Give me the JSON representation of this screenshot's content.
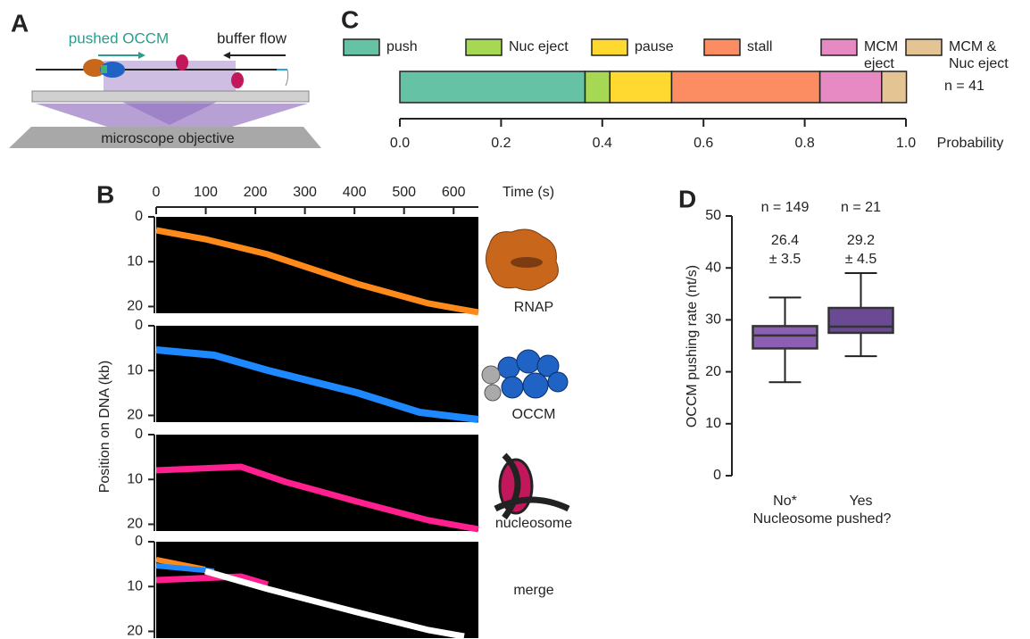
{
  "panels": {
    "a": {
      "letter": "A",
      "pushed_label": "pushed OCCM",
      "flow_label": "buffer flow",
      "objective_label": "microscope objective"
    },
    "b": {
      "letter": "B"
    },
    "c": {
      "letter": "C"
    },
    "d": {
      "letter": "D"
    }
  },
  "chart_data": [
    {
      "type": "kymograph",
      "xlabel": "Time (s)",
      "ylabel": "Position on DNA (kb)",
      "xlim": [
        0,
        650
      ],
      "xticks": [
        0,
        100,
        200,
        300,
        400,
        500,
        600
      ],
      "ylim": [
        0,
        21.5
      ],
      "yticks": [
        0,
        10,
        20
      ],
      "channels": [
        {
          "name": "RNAP",
          "color": "#ff8a1c"
        },
        {
          "name": "OCCM",
          "color": "#1e88ff"
        },
        {
          "name": "nucleosome",
          "color": "#ff1f8f"
        },
        {
          "name": "merge",
          "color": "#ffffff"
        }
      ]
    },
    {
      "type": "bar",
      "orientation": "horizontal",
      "stacked": true,
      "xlabel": "Probability",
      "annotation": "n = 41",
      "xlim": [
        0,
        1
      ],
      "xticks": [
        {
          "value": 0,
          "label": "0.0"
        },
        0.2,
        0.4,
        0.6,
        0.8,
        {
          "value": 1,
          "label": "1.0"
        }
      ],
      "series": [
        {
          "name": "push",
          "color": "#66c2a5",
          "values": [
            0.366
          ]
        },
        {
          "name": "Nuc eject",
          "color": "#a6d854",
          "values": [
            0.049
          ]
        },
        {
          "name": "pause",
          "color": "#ffd92f",
          "values": [
            0.122
          ]
        },
        {
          "name": "stall",
          "color": "#fc8d62",
          "values": [
            0.293
          ]
        },
        {
          "name": "MCM eject",
          "color": "#e78ac3",
          "values": [
            0.122
          ]
        },
        {
          "name": "MCM & Nuc eject",
          "color": "#e5c494",
          "values": [
            0.049
          ]
        }
      ]
    },
    {
      "type": "box",
      "xlabel": "Nucleosome pushed?",
      "ylabel": "OCCM pushing rate (nt/s)",
      "categories": [
        "No*",
        "Yes"
      ],
      "colors": [
        "#8b5fb3",
        "#6a4a92"
      ],
      "boxes": [
        {
          "whislo": 18,
          "q1": 24.5,
          "med": 27,
          "q3": 28.8,
          "whishi": 34.3
        },
        {
          "whislo": 23,
          "q1": 27.5,
          "med": 28.7,
          "q3": 32.3,
          "whishi": 39
        }
      ],
      "n_labels": [
        "n = 149",
        "n = 21"
      ],
      "stat_labels": [
        [
          "26.4",
          "± 3.5"
        ],
        [
          "29.2",
          "± 4.5"
        ]
      ],
      "ylim": [
        0,
        50
      ],
      "yticks": [
        0,
        10,
        20,
        30,
        40,
        50
      ]
    }
  ]
}
